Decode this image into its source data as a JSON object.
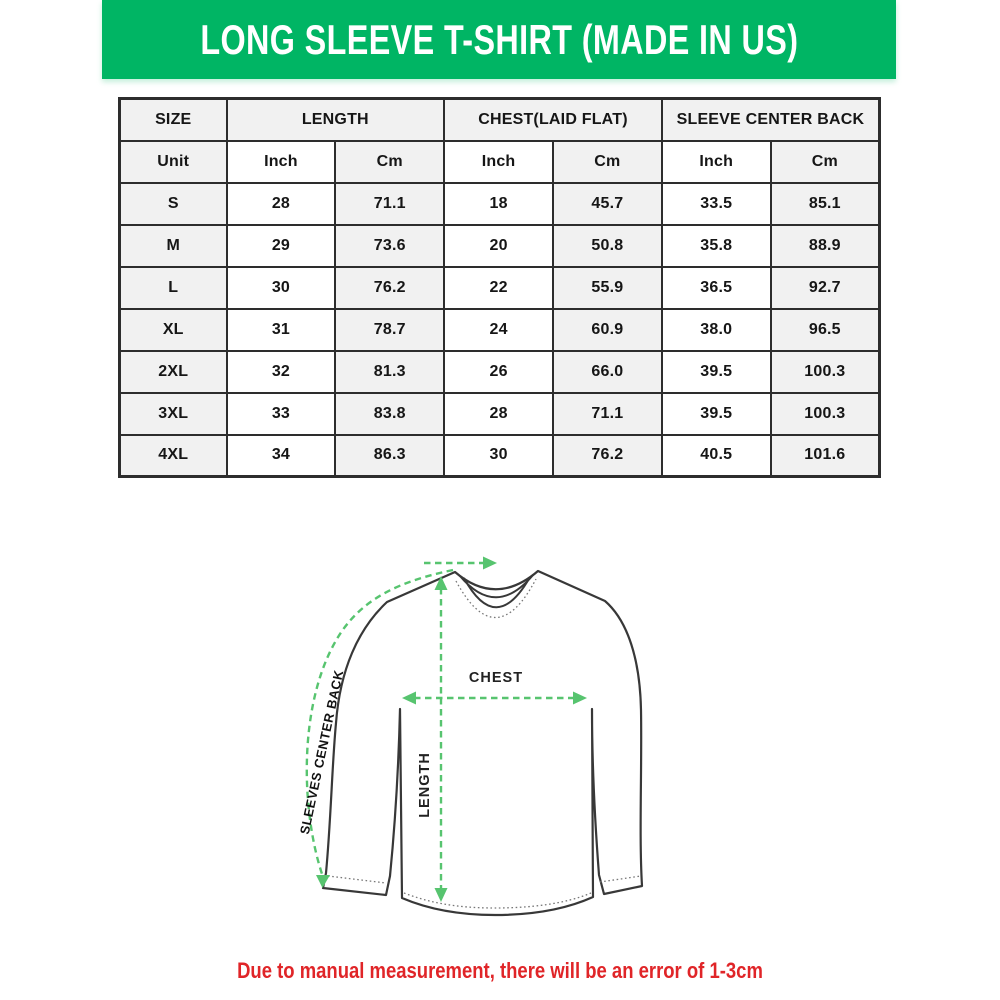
{
  "theme": {
    "banner_green": "#00b564",
    "arrow_green": "#57c46f",
    "note_red": "#e02528",
    "cell_gray": "#f1f1f1",
    "border_dark": "#2d2d2d",
    "outline_dark": "#383838"
  },
  "header": {
    "title": "LONG SLEEVE T-SHIRT (MADE IN US)"
  },
  "size_chart": {
    "corner_label": "SIZE",
    "unit_label": "Unit",
    "groups": [
      {
        "label": "LENGTH",
        "units": [
          "Inch",
          "Cm"
        ]
      },
      {
        "label": "CHEST(LAID FLAT)",
        "units": [
          "Inch",
          "Cm"
        ]
      },
      {
        "label": "SLEEVE CENTER BACK",
        "units": [
          "Inch",
          "Cm"
        ]
      }
    ],
    "rows": [
      {
        "size": "S",
        "values": [
          "28",
          "71.1",
          "18",
          "45.7",
          "33.5",
          "85.1"
        ]
      },
      {
        "size": "M",
        "values": [
          "29",
          "73.6",
          "20",
          "50.8",
          "35.8",
          "88.9"
        ]
      },
      {
        "size": "L",
        "values": [
          "30",
          "76.2",
          "22",
          "55.9",
          "36.5",
          "92.7"
        ]
      },
      {
        "size": "XL",
        "values": [
          "31",
          "78.7",
          "24",
          "60.9",
          "38.0",
          "96.5"
        ]
      },
      {
        "size": "2XL",
        "values": [
          "32",
          "81.3",
          "26",
          "66.0",
          "39.5",
          "100.3"
        ]
      },
      {
        "size": "3XL",
        "values": [
          "33",
          "83.8",
          "28",
          "71.1",
          "39.5",
          "100.3"
        ]
      },
      {
        "size": "4XL",
        "values": [
          "34",
          "86.3",
          "30",
          "76.2",
          "40.5",
          "101.6"
        ]
      }
    ]
  },
  "diagram": {
    "chest_label": "CHEST",
    "length_label": "LENGTH",
    "sleeve_label": "SLEEVES CENTER BACK"
  },
  "footer": {
    "note": "Due to manual measurement, there will be an error of 1-3cm"
  },
  "chart_data": {
    "type": "table",
    "title": "LONG SLEEVE T-SHIRT (MADE IN US)",
    "columns": [
      "SIZE",
      "LENGTH Inch",
      "LENGTH Cm",
      "CHEST(LAID FLAT) Inch",
      "CHEST(LAID FLAT) Cm",
      "SLEEVE CENTER BACK Inch",
      "SLEEVE CENTER BACK Cm"
    ],
    "rows": [
      [
        "S",
        28,
        71.1,
        18,
        45.7,
        33.5,
        85.1
      ],
      [
        "M",
        29,
        73.6,
        20,
        50.8,
        35.8,
        88.9
      ],
      [
        "L",
        30,
        76.2,
        22,
        55.9,
        36.5,
        92.7
      ],
      [
        "XL",
        31,
        78.7,
        24,
        60.9,
        38.0,
        96.5
      ],
      [
        "2XL",
        32,
        81.3,
        26,
        66.0,
        39.5,
        100.3
      ],
      [
        "3XL",
        33,
        83.8,
        28,
        71.1,
        39.5,
        100.3
      ],
      [
        "4XL",
        34,
        86.3,
        30,
        76.2,
        40.5,
        101.6
      ]
    ],
    "note": "Due to manual measurement, there will be an error of 1-3cm"
  }
}
